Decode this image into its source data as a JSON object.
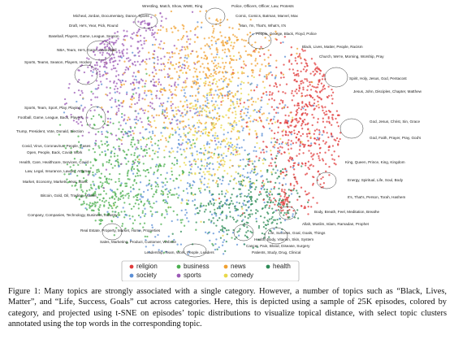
{
  "figure": {
    "annotations": [
      "Wrestling, Match, Show, WWE, Ring",
      "Police, Officers, Officer, Law, Protests",
      "Micheal, Jordan, Documentary, Dance, Sports",
      "Comic, Comics, Batman, Marvel, Max",
      "Draft, He's, Year, Pick, Round",
      "Man, I'm, That's, What's, It's",
      "People, George, Black, Floyd, Police",
      "Baseball, Players, Game, League, Season",
      "NBA, Team, He's, Game, Basketball",
      "Black, Lives, Matter, People, Racism",
      "Church, We're, Morning, Worship, Pray",
      "Sports, Teams, Season, Players, Hockey",
      "Spirit, Holy, Jesus, God, Pentacost",
      "Jesus, John, Disciples, Chapter, Matthew",
      "Sports, Team, Sport, Play, Playing",
      "Football, Game, League, Back, Players",
      "God, Jesus, Christ, Sin, Grace",
      "God, Faith, Prayer, Pray, God's",
      "Trump, President, Vote, Donald, Election",
      "Covid, Virus, Coronavirus, People, Cases",
      "Open, People, Back, Covid, Work",
      "King, Queen, Prince, King, Kingdom",
      "Health, Care, Healthcare, Services, Covid",
      "Law, Legal, Insurance, Lawyer, Attorney",
      "Energy, Spiritual, Life, Soul, Body",
      "Market, Economy, Markets, Year, Stock",
      "It's, That's, Person, Torah, Hashem",
      "Bitcoin, Gold, Oil, Trading, Market",
      "Body, Breath, Feel, Meditation, Breathe",
      "Company, Companies, Technology, Business, Industry",
      "Allah, Muslim, Islam, Ramadan, Prophet",
      "Life, Success, Goal, Goals, Things",
      "Real Estate, Property, Market, Home, Properties",
      "Health, Body, Vitamin, Skin, System",
      "Sales, Marketing, Product, Customer, Website",
      "Cancer, Pain, Blood, Disease, Surgery",
      "Patients, Study, Drug, Clinical",
      "Leadership, Team, Work, People, Leaders"
    ],
    "legend": [
      {
        "label": "religion",
        "color": "#e03a3a"
      },
      {
        "label": "business",
        "color": "#4caf50"
      },
      {
        "label": "news",
        "color": "#f0a030"
      },
      {
        "label": "health",
        "color": "#2e8b57"
      },
      {
        "label": "society",
        "color": "#5b8fd6"
      },
      {
        "label": "sports",
        "color": "#9b59b6"
      },
      {
        "label": "comedy",
        "color": "#e8d84a"
      }
    ]
  },
  "caption": "Figure 1: Many topics are strongly associated with a single category. However, a number of topics such as “Black, Lives, Matter”, and “Life, Success, Goals” cut across categories. Here, this is depicted using a sample of 25K episodes, colored by category, and projected using t-SNE on episodes’ topic distributions to visualize topical distance, with select topic clusters annotated using the top words in the corresponding topic."
}
